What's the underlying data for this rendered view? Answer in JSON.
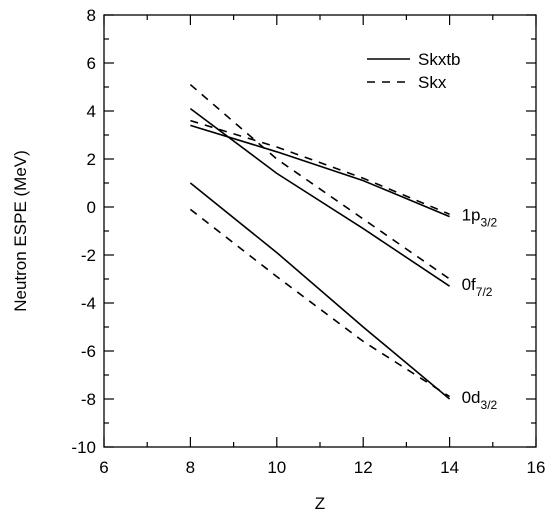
{
  "chart_data": {
    "type": "line",
    "xlabel": "Z",
    "ylabel": "Neutron ESPE (MeV)",
    "xlim": [
      6,
      16
    ],
    "ylim": [
      -10,
      8
    ],
    "x_ticks": [
      6,
      8,
      10,
      12,
      14,
      16
    ],
    "y_ticks": [
      -10,
      -8,
      -6,
      -4,
      -2,
      0,
      2,
      4,
      6,
      8
    ],
    "grid": false,
    "legend_position": "top-right",
    "legend": [
      {
        "name": "Skxtb",
        "style": "solid"
      },
      {
        "name": "Skx",
        "style": "dashed"
      }
    ],
    "series": [
      {
        "name": "Skxtb",
        "orbital": "1p3/2",
        "style": "solid",
        "x": [
          8,
          10,
          12,
          14
        ],
        "y": [
          3.4,
          2.3,
          1.1,
          -0.4
        ]
      },
      {
        "name": "Skxtb",
        "orbital": "0f7/2",
        "style": "solid",
        "x": [
          8,
          10,
          12,
          14
        ],
        "y": [
          4.1,
          1.4,
          -0.9,
          -3.3
        ]
      },
      {
        "name": "Skxtb",
        "orbital": "0d3/2",
        "style": "solid",
        "x": [
          8,
          10,
          12,
          14
        ],
        "y": [
          1.0,
          -1.9,
          -5.0,
          -8.0
        ]
      },
      {
        "name": "Skx",
        "orbital": "1p3/2",
        "style": "dashed",
        "x": [
          8,
          10,
          12,
          14
        ],
        "y": [
          3.6,
          2.5,
          1.2,
          -0.3
        ]
      },
      {
        "name": "Skx",
        "orbital": "0f7/2",
        "style": "dashed",
        "x": [
          8,
          10,
          12,
          14
        ],
        "y": [
          5.1,
          2.0,
          -0.5,
          -3.0
        ]
      },
      {
        "name": "Skx",
        "orbital": "0d3/2",
        "style": "dashed",
        "x": [
          8,
          10,
          12,
          14
        ],
        "y": [
          -0.1,
          -2.9,
          -5.6,
          -7.9
        ]
      }
    ],
    "annotations": [
      {
        "main": "1p",
        "sub": "3/2",
        "x": 14,
        "y": -0.4
      },
      {
        "main": "0f",
        "sub": "7/2",
        "x": 14,
        "y": -3.3
      },
      {
        "main": "0d",
        "sub": "3/2",
        "x": 14,
        "y": -8.0
      }
    ]
  }
}
